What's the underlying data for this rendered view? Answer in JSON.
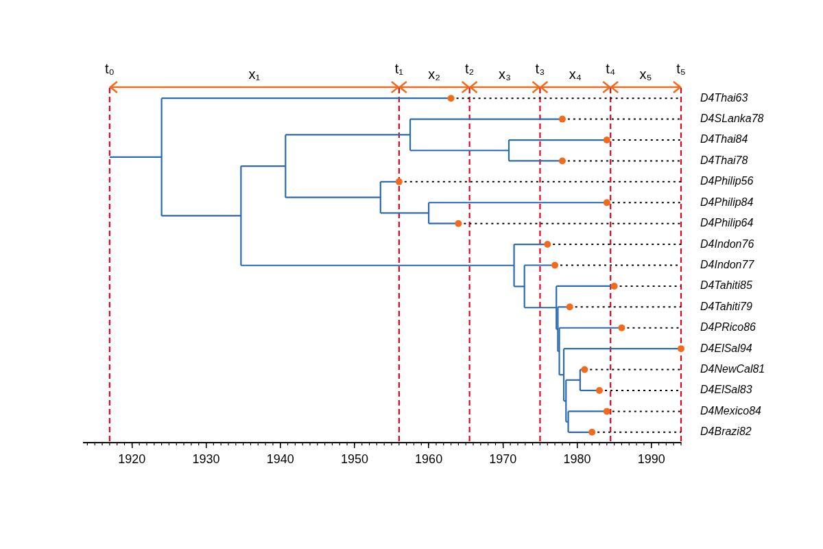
{
  "chart_data": {
    "type": "tree",
    "xlim": [
      1913.5,
      1994
    ],
    "xticks": [
      1920,
      1930,
      1940,
      1950,
      1960,
      1970,
      1980,
      1990
    ],
    "tree": {
      "color": "#2a6ab0",
      "root": {
        "time": 1917,
        "children": [
          {
            "time": 1924,
            "children": [
              {
                "name": "D4Thai63",
                "time": 1963
              },
              {
                "time": 1934.7,
                "children": [
                  {
                    "time": 1940.7,
                    "children": [
                      {
                        "time": 1957.5,
                        "children": [
                          {
                            "name": "D4SLanka78",
                            "time": 1978
                          },
                          {
                            "time": 1970.8,
                            "children": [
                              {
                                "name": "D4Thai84",
                                "time": 1984
                              },
                              {
                                "name": "D4Thai78",
                                "time": 1978
                              }
                            ]
                          }
                        ]
                      },
                      {
                        "time": 1953.5,
                        "children": [
                          {
                            "name": "D4Philip56",
                            "time": 1956
                          },
                          {
                            "time": 1960,
                            "children": [
                              {
                                "name": "D4Philip84",
                                "time": 1984
                              },
                              {
                                "name": "D4Philip64",
                                "time": 1964
                              }
                            ]
                          }
                        ]
                      }
                    ]
                  },
                  {
                    "time": 1971.5,
                    "children": [
                      {
                        "name": "D4Indon76",
                        "time": 1976
                      },
                      {
                        "time": 1972.9,
                        "children": [
                          {
                            "name": "D4Indon77",
                            "time": 1977
                          },
                          {
                            "time": 1977.2,
                            "children": [
                              {
                                "name": "D4Tahiti85",
                                "time": 1985
                              },
                              {
                                "time": 1977.4,
                                "children": [
                                  {
                                    "name": "D4Tahiti79",
                                    "time": 1979
                                  },
                                  {
                                    "time": 1977.6,
                                    "children": [
                                      {
                                        "name": "D4PRico86",
                                        "time": 1986
                                      },
                                      {
                                        "time": 1978.2,
                                        "children": [
                                          {
                                            "name": "D4ElSal94",
                                            "time": 1994
                                          },
                                          {
                                            "time": 1978.5,
                                            "children": [
                                              {
                                                "time": 1980.4,
                                                "children": [
                                                  {
                                                    "name": "D4NewCal81",
                                                    "time": 1981
                                                  },
                                                  {
                                                    "name": "D4ElSal83",
                                                    "time": 1983
                                                  }
                                                ]
                                              },
                                              {
                                                "time": 1978.8,
                                                "children": [
                                                  {
                                                    "name": "D4Mexico84",
                                                    "time": 1984
                                                  },
                                                  {
                                                    "name": "D4Brazi82",
                                                    "time": 1982
                                                  }
                                                ]
                                              }
                                            ]
                                          }
                                        ]
                                      }
                                    ]
                                  }
                                ]
                              }
                            ]
                          }
                        ]
                      }
                    ]
                  }
                ]
              }
            ]
          }
        ]
      }
    },
    "tip_markers": {
      "color": "#f26a1b",
      "marker": "circle"
    },
    "extensions": {
      "color": "#000000",
      "line_style": "dotted"
    },
    "boundaries": {
      "color": "#e3051b",
      "line_style": "dashed",
      "items": [
        {
          "label": "t₀",
          "value": 1917
        },
        {
          "label": "t₁",
          "value": 1956
        },
        {
          "label": "t₂",
          "value": 1965.5
        },
        {
          "label": "t₃",
          "value": 1975
        },
        {
          "label": "t₄",
          "value": 1984.5
        },
        {
          "label": "t₅",
          "value": 1994
        }
      ]
    },
    "intervals": {
      "color": "#f26a1b",
      "labels": [
        "x₁",
        "x₂",
        "x₃",
        "x₄",
        "x₅"
      ]
    }
  }
}
